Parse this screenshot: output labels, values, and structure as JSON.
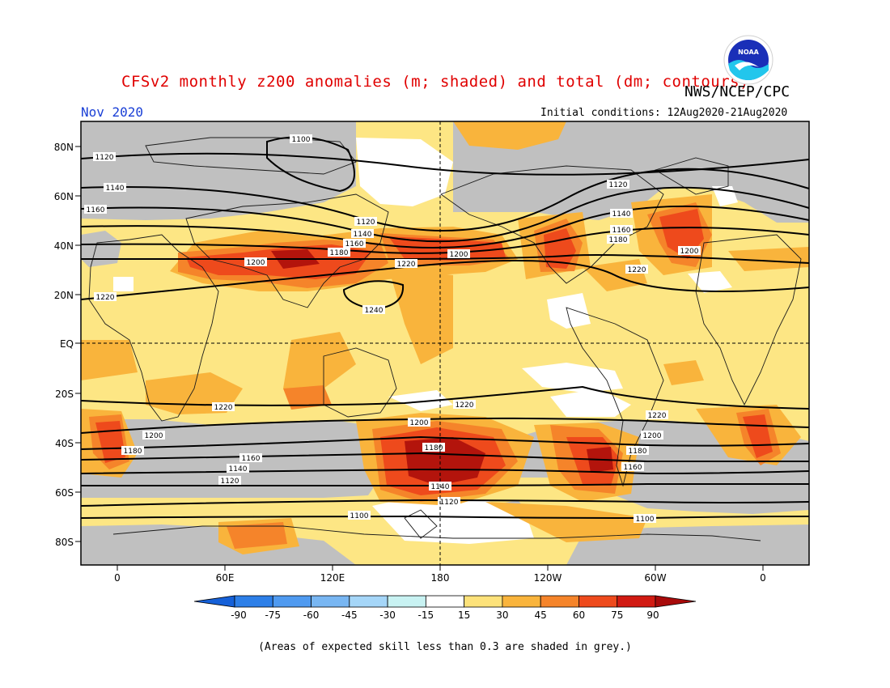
{
  "title": "CFSv2 monthly z200 anomalies (m; shaded) and total (dm; contours)",
  "agency": "NWS/NCEP/CPC",
  "logo_text": "NOAA",
  "valid_month": "Nov 2020",
  "initial_conditions": "Initial conditions: 12Aug2020-21Aug2020",
  "footnote": "(Areas of expected skill less than 0.3 are shaded in grey.)",
  "map": {
    "lat_labels": [
      "80N",
      "60N",
      "40N",
      "20N",
      "EQ",
      "20S",
      "40S",
      "60S",
      "80S"
    ],
    "lon_labels": [
      "0",
      "60E",
      "120E",
      "180",
      "120W",
      "60W",
      "0"
    ],
    "contour_labels": {
      "north": [
        "1100",
        "1120",
        "1140",
        "1160",
        "1180",
        "1200",
        "1220",
        "1240"
      ],
      "south": [
        "1220",
        "1200",
        "1180",
        "1160",
        "1140",
        "1120",
        "1100"
      ]
    }
  },
  "colorbar": {
    "tick_labels": [
      "-90",
      "-75",
      "-60",
      "-45",
      "-30",
      "-15",
      "15",
      "30",
      "45",
      "60",
      "75",
      "90"
    ],
    "colors": [
      "#1560d8",
      "#2d7fe8",
      "#4f9af0",
      "#78b6f2",
      "#a5d6f8",
      "#c8f2f2",
      "#ffffff",
      "#fde27a",
      "#f9b43c",
      "#f5842a",
      "#ee4a1c",
      "#d11a12",
      "#a80a0a"
    ]
  },
  "colors": {
    "title": "#e00000",
    "month": "#1a3fd6",
    "grey_low_skill": "#c0c0c0",
    "light_yellow": "#fde684",
    "orange": "#f9b43c",
    "dark_orange": "#f5842a",
    "red": "#ee4a1c",
    "dark_red": "#b3140c"
  }
}
